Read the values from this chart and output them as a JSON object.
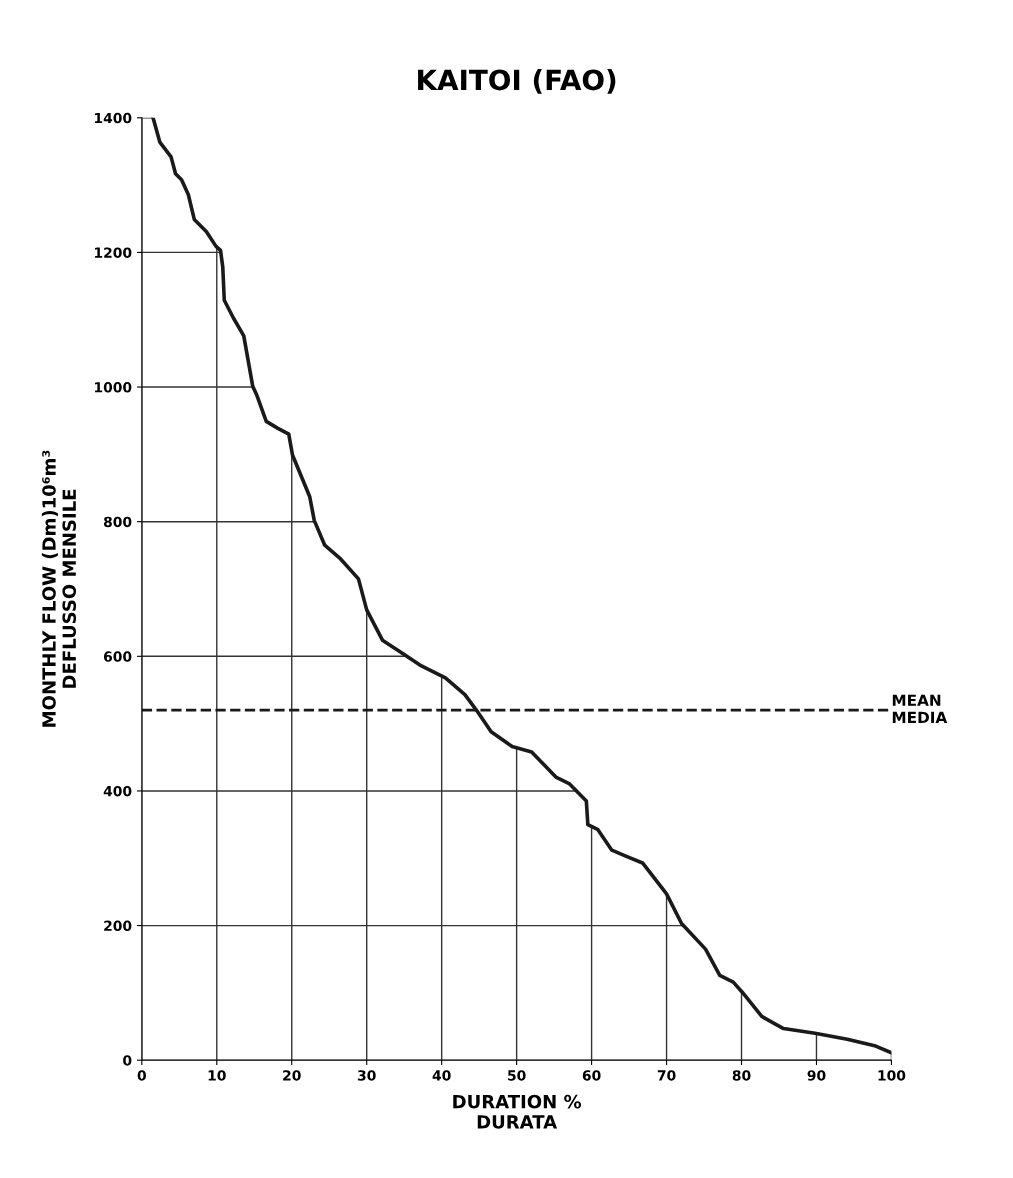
{
  "chart_data": {
    "type": "line",
    "title": "KAITOI (FAO)",
    "xlabel": "DURATION %\nDURATA",
    "ylabel": "MONTHLY FLOW (Dm)10⁶m³\nDEFLUSSO MENSILE",
    "x": [
      1.5,
      2.4,
      3.9,
      4.5,
      5.3,
      6.2,
      7.0,
      8.6,
      9.9,
      10.5,
      10.8,
      11.0,
      12.2,
      13.6,
      14.8,
      15.3,
      16.6,
      18.1,
      19.6,
      20.1,
      22.4,
      23.0,
      24.4,
      26.4,
      28.9,
      30.0,
      32.1,
      34.7,
      37.1,
      40.5,
      43.1,
      44.7,
      46.6,
      49.4,
      52.0,
      55.3,
      57.0,
      59.3,
      59.5,
      60.8,
      62.7,
      64.8,
      66.8,
      70.0,
      72.0,
      75.2,
      77.1,
      78.9,
      80.1,
      82.7,
      85.6,
      89.8,
      94.1,
      97.9,
      100
    ],
    "series": [
      {
        "color": "#1a1a1a",
        "values": [
          1400,
          1364,
          1342,
          1317,
          1308,
          1286,
          1249,
          1231,
          1209,
          1203,
          1178,
          1129,
          1103,
          1076,
          1001,
          989,
          949,
          939,
          930,
          899,
          837,
          802,
          765,
          746,
          715,
          669,
          624,
          605,
          587,
          568,
          543,
          519,
          488,
          466,
          458,
          420,
          411,
          385,
          350,
          343,
          312,
          302,
          293,
          247,
          203,
          165,
          126,
          116,
          101,
          65,
          47,
          40,
          31,
          21,
          11
        ]
      }
    ],
    "xlim": [
      0,
      100
    ],
    "ylim": [
      0,
      1400
    ],
    "xticks": [
      0,
      10,
      20,
      30,
      40,
      50,
      60,
      70,
      80,
      90,
      100
    ],
    "yticks": [
      0,
      200,
      400,
      600,
      800,
      1000,
      1200,
      1400
    ],
    "ref_lines": [
      {
        "axis": "y",
        "value": 520,
        "label": "MEAN\nMEDIA",
        "line_style": "dashed",
        "color": "#1a1a1a"
      }
    ],
    "grid": true,
    "legend": false,
    "marker": "none",
    "line_style": "solid"
  }
}
